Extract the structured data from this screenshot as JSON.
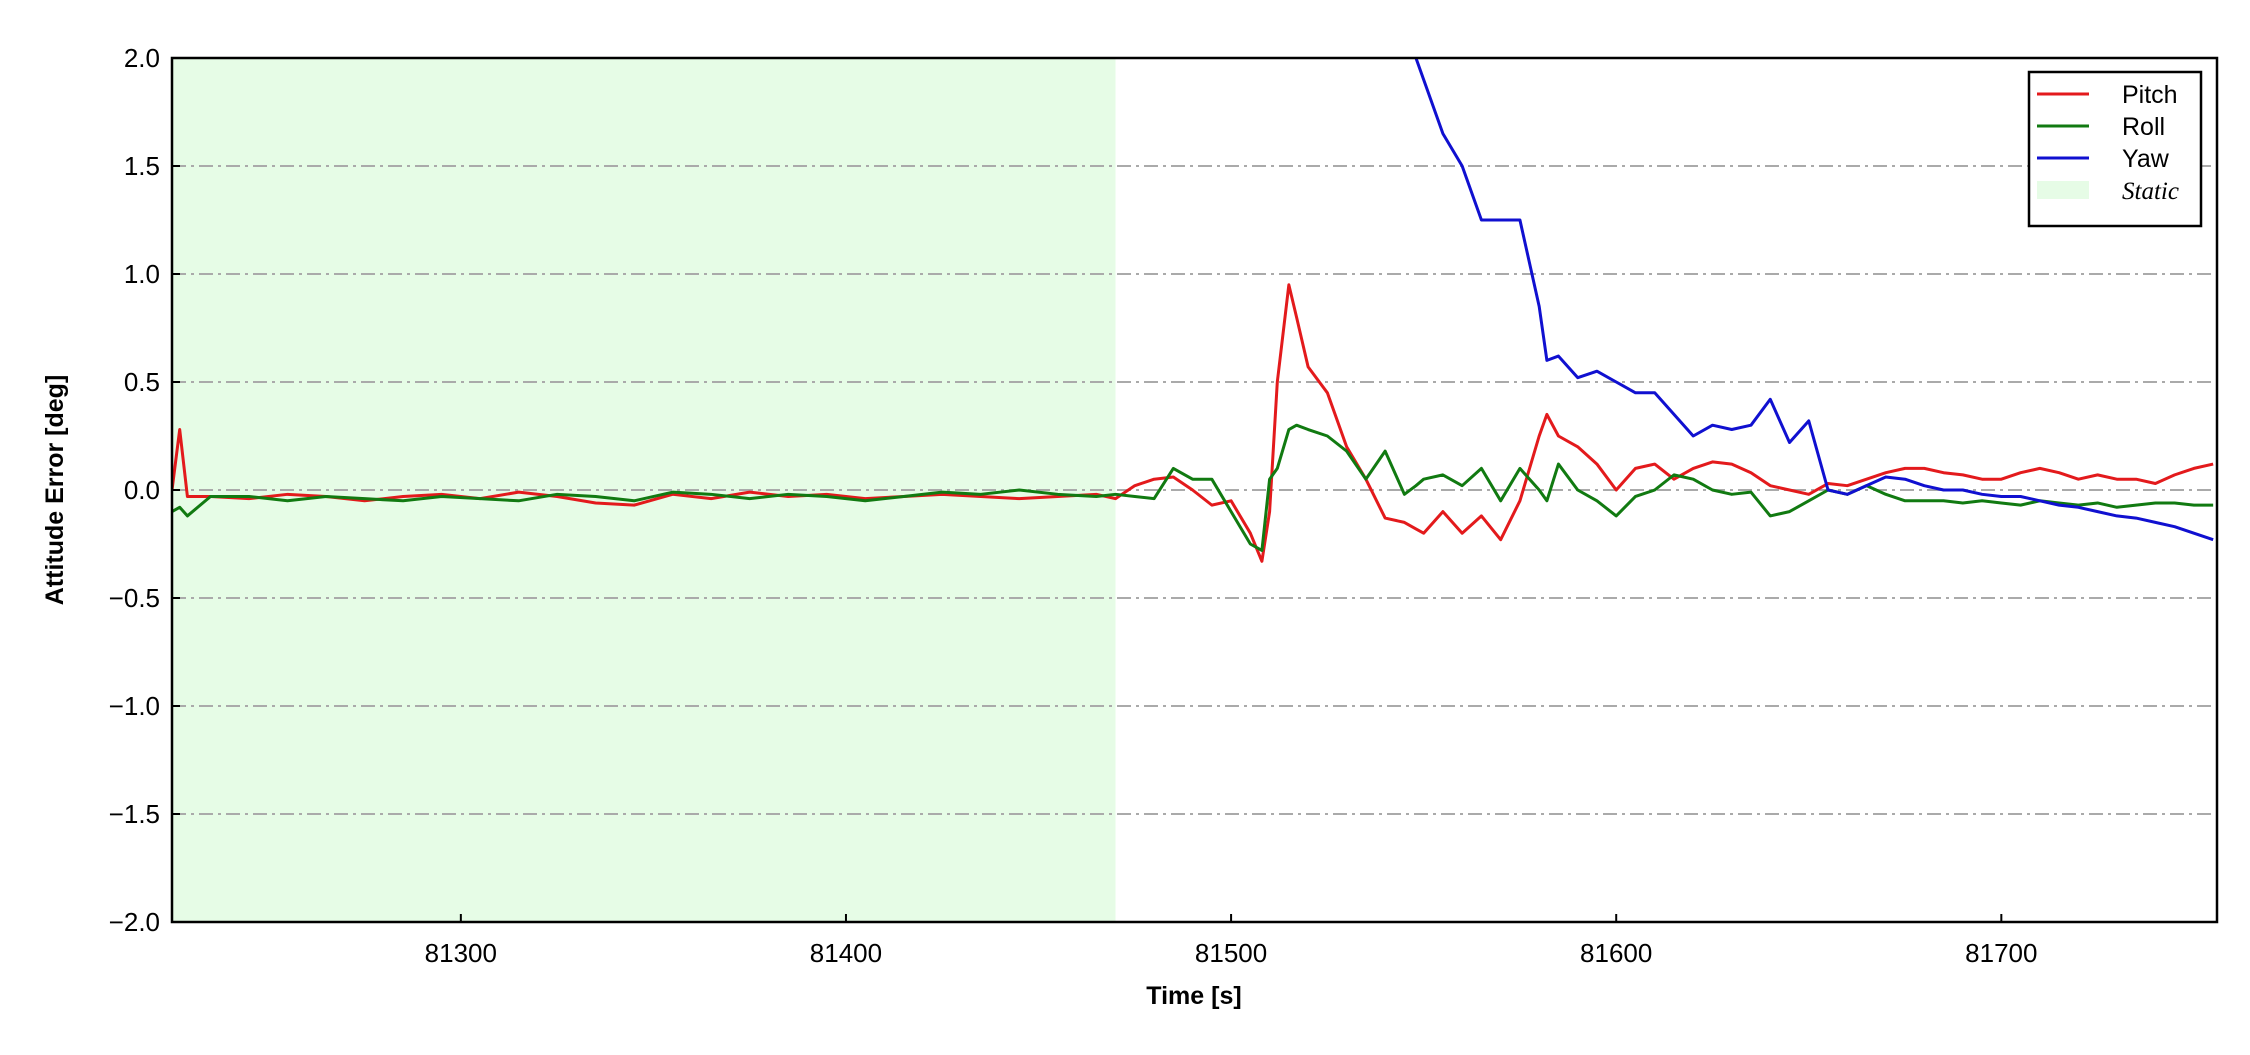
{
  "chart_data": {
    "type": "line",
    "x_label": "Time [s]",
    "y_label": "Attitude Error [deg]",
    "xlim": [
      81225,
      81756
    ],
    "ylim": [
      -2.0,
      2.0
    ],
    "xticks": [
      81300,
      81400,
      81500,
      81600,
      81700
    ],
    "yticks": [
      {
        "value": -2.0,
        "label": "−2.0"
      },
      {
        "value": -1.5,
        "label": "−1.5"
      },
      {
        "value": -1.0,
        "label": "−1.0"
      },
      {
        "value": -0.5,
        "label": "−0.5"
      },
      {
        "value": 0,
        "label": "0.0"
      },
      0.5,
      {
        "value": 1.0,
        "label": "1.0"
      },
      1.5,
      {
        "value": 2.0,
        "label": "2.0"
      }
    ],
    "grid": true,
    "legend_position": "upper right",
    "shaded_region": {
      "name": "Static",
      "x": [
        81225,
        81470
      ],
      "color": "#e6fce6"
    },
    "x": [
      81225,
      81227,
      81229,
      81235,
      81245,
      81255,
      81265,
      81275,
      81285,
      81295,
      81305,
      81315,
      81325,
      81335,
      81345,
      81355,
      81365,
      81375,
      81385,
      81395,
      81405,
      81415,
      81425,
      81435,
      81445,
      81455,
      81465,
      81470,
      81475,
      81480,
      81485,
      81490,
      81495,
      81500,
      81505,
      81508,
      81510,
      81512,
      81515,
      81517,
      81520,
      81525,
      81530,
      81535,
      81540,
      81545,
      81548,
      81550,
      81555,
      81560,
      81565,
      81570,
      81575,
      81580,
      81582,
      81585,
      81590,
      81595,
      81600,
      81605,
      81610,
      81615,
      81620,
      81625,
      81630,
      81635,
      81640,
      81645,
      81650,
      81655,
      81660,
      81665,
      81670,
      81675,
      81680,
      81685,
      81690,
      81695,
      81700,
      81705,
      81710,
      81715,
      81720,
      81725,
      81730,
      81735,
      81740,
      81745,
      81750,
      81755
    ],
    "series": [
      {
        "name": "Pitch",
        "color": "#e31a1c",
        "values": [
          0,
          0.28,
          -0.03,
          -0.03,
          -0.04,
          -0.02,
          -0.03,
          -0.05,
          -0.03,
          -0.02,
          -0.04,
          -0.01,
          -0.03,
          -0.06,
          -0.07,
          -0.02,
          -0.04,
          -0.01,
          -0.03,
          -0.02,
          -0.04,
          -0.03,
          -0.02,
          -0.03,
          -0.04,
          -0.03,
          -0.02,
          -0.04,
          0.02,
          0.05,
          0.06,
          0,
          -0.07,
          -0.05,
          -0.2,
          -0.33,
          -0.1,
          0.5,
          0.95,
          0.8,
          0.57,
          0.45,
          0.2,
          0.05,
          -0.13,
          -0.15,
          -0.18,
          -0.2,
          -0.1,
          -0.2,
          -0.12,
          -0.23,
          -0.05,
          0.25,
          0.35,
          0.25,
          0.2,
          0.12,
          0,
          0.1,
          0.12,
          0.05,
          0.1,
          0.13,
          0.12,
          0.08,
          0.02,
          0,
          -0.02,
          0.03,
          0.02,
          0.05,
          0.08,
          0.1,
          0.1,
          0.08,
          0.07,
          0.05,
          0.05,
          0.08,
          0.1,
          0.08,
          0.05,
          0.07,
          0.05,
          0.05,
          0.03,
          0.07,
          0.1,
          0.12
        ]
      },
      {
        "name": "Roll",
        "color": "#117a11",
        "values": [
          -0.1,
          -0.08,
          -0.12,
          -0.03,
          -0.03,
          -0.05,
          -0.03,
          -0.04,
          -0.05,
          -0.03,
          -0.04,
          -0.05,
          -0.02,
          -0.03,
          -0.05,
          -0.01,
          -0.02,
          -0.04,
          -0.02,
          -0.03,
          -0.05,
          -0.03,
          -0.01,
          -0.02,
          0.0,
          -0.02,
          -0.03,
          -0.02,
          -0.03,
          -0.04,
          0.1,
          0.05,
          0.05,
          -0.1,
          -0.25,
          -0.28,
          0.05,
          0.1,
          0.28,
          0.3,
          0.28,
          0.25,
          0.18,
          0.05,
          0.18,
          -0.02,
          0.02,
          0.05,
          0.07,
          0.02,
          0.1,
          -0.05,
          0.1,
          0,
          -0.05,
          0.12,
          0,
          -0.05,
          -0.12,
          -0.03,
          0,
          0.07,
          0.05,
          0,
          -0.02,
          -0.01,
          -0.12,
          -0.1,
          -0.05,
          0,
          -0.02,
          0.02,
          -0.02,
          -0.05,
          -0.05,
          -0.05,
          -0.06,
          -0.05,
          -0.06,
          -0.07,
          -0.05,
          -0.06,
          -0.07,
          -0.06,
          -0.08,
          -0.07,
          -0.06,
          -0.06,
          -0.07,
          -0.07
        ]
      },
      {
        "name": "Yaw",
        "color": "#1010d0",
        "values": [
          null,
          null,
          null,
          null,
          null,
          null,
          null,
          null,
          null,
          null,
          null,
          null,
          null,
          null,
          null,
          null,
          null,
          null,
          null,
          null,
          null,
          null,
          null,
          null,
          null,
          null,
          null,
          null,
          null,
          null,
          null,
          null,
          null,
          null,
          null,
          null,
          null,
          null,
          null,
          null,
          null,
          null,
          null,
          null,
          null,
          null,
          2.0,
          1.9,
          1.65,
          1.5,
          1.25,
          1.25,
          1.25,
          0.85,
          0.6,
          0.62,
          0.52,
          0.55,
          0.5,
          0.45,
          0.45,
          0.35,
          0.25,
          0.3,
          0.28,
          0.3,
          0.42,
          0.22,
          0.32,
          0,
          -0.02,
          0.02,
          0.06,
          0.05,
          0.02,
          0,
          0,
          -0.02,
          -0.03,
          -0.03,
          -0.05,
          -0.07,
          -0.08,
          -0.1,
          -0.12,
          -0.13,
          -0.15,
          -0.17,
          -0.2,
          -0.23
        ]
      }
    ]
  }
}
